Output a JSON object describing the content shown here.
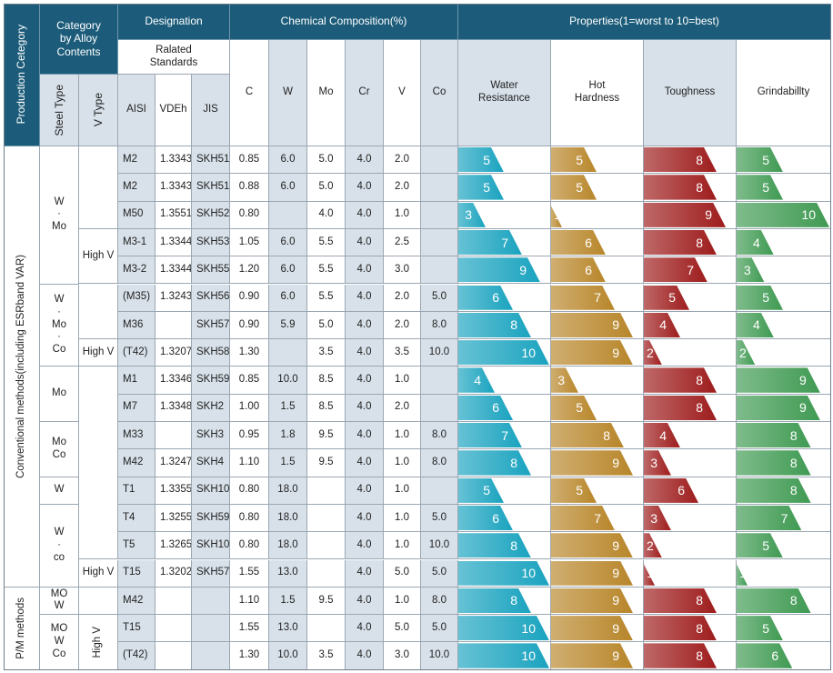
{
  "header": {
    "production_category": "Production Cetegory",
    "category_by_alloy": "Category\nby Alloy\nContents",
    "steel_type": "Steel Type",
    "v_type": "V Type",
    "designation": "Designation",
    "related_standards": "Ralated\nStandards",
    "aisi": "AISI",
    "vdeh": "VDEh",
    "jis": "JIS",
    "chemical_composition": "Chemical Composition(%)",
    "elements": [
      "C",
      "W",
      "Mo",
      "Cr",
      "V",
      "Co"
    ],
    "properties": "Properties(1=worst to 10=best)",
    "property_names": [
      "Water\nResistance",
      "Hot\nHardness",
      "Toughness",
      "Grindabillty"
    ]
  },
  "production_groups": [
    {
      "label": "Conventional methods(including ESRband VAR)"
    },
    {
      "label": "P/M methods"
    }
  ],
  "steel_type_groups": [
    {
      "label": "W\n·\nMo"
    },
    {
      "label": "W\n·\nMo\n·\nCo"
    },
    {
      "label": "Mo"
    },
    {
      "label": "Mo\nCo"
    },
    {
      "label": "W"
    },
    {
      "label": "W\n·\nco"
    },
    {
      "label": "MO\nW"
    },
    {
      "label": "MO\nW\nCo"
    }
  ],
  "v_type_groups": [
    {
      "label": ""
    },
    {
      "label": "High V"
    },
    {
      "label": ""
    },
    {
      "label": "High V"
    },
    {
      "label": ""
    },
    {
      "label": "High V"
    },
    {
      "label": ""
    },
    {
      "label": "High V"
    }
  ],
  "rows": [
    {
      "aisi": "M2",
      "vdeh": "1.3343",
      "jis": "SKH51",
      "c": "0.85",
      "w": "6.0",
      "mo": "5.0",
      "cr": "4.0",
      "v": "2.0",
      "co": "",
      "water": 5,
      "hot": 5,
      "tough": 8,
      "grind": 5
    },
    {
      "aisi": "M2",
      "vdeh": "1.3343",
      "jis": "SKH51",
      "c": "0.88",
      "w": "6.0",
      "mo": "5.0",
      "cr": "4.0",
      "v": "2.0",
      "co": "",
      "water": 5,
      "hot": 5,
      "tough": 8,
      "grind": 5
    },
    {
      "aisi": "M50",
      "vdeh": "1.3551",
      "jis": "SKH52",
      "c": "0.80",
      "w": "",
      "mo": "4.0",
      "cr": "4.0",
      "v": "1.0",
      "co": "",
      "water": 3,
      "hot": 1,
      "tough": 9,
      "grind": 10
    },
    {
      "aisi": "M3-1",
      "vdeh": "1.3344",
      "jis": "SKH53",
      "c": "1.05",
      "w": "6.0",
      "mo": "5.5",
      "cr": "4.0",
      "v": "2.5",
      "co": "",
      "water": 7,
      "hot": 6,
      "tough": 8,
      "grind": 4
    },
    {
      "aisi": "M3-2",
      "vdeh": "1.3344",
      "jis": "SKH55",
      "c": "1.20",
      "w": "6.0",
      "mo": "5.5",
      "cr": "4.0",
      "v": "3.0",
      "co": "",
      "water": 9,
      "hot": 6,
      "tough": 7,
      "grind": 3
    },
    {
      "aisi": "(M35)",
      "vdeh": "1.3243",
      "jis": "SKH56",
      "c": "0.90",
      "w": "6.0",
      "mo": "5.5",
      "cr": "4.0",
      "v": "2.0",
      "co": "5.0",
      "water": 6,
      "hot": 7,
      "tough": 5,
      "grind": 5
    },
    {
      "aisi": "M36",
      "vdeh": "",
      "jis": "SKH57",
      "c": "0.90",
      "w": "5.9",
      "mo": "5.0",
      "cr": "4.0",
      "v": "2.0",
      "co": "8.0",
      "water": 8,
      "hot": 9,
      "tough": 4,
      "grind": 4
    },
    {
      "aisi": "(T42)",
      "vdeh": "1.3207",
      "jis": "SKH58",
      "c": "1.30",
      "w": "",
      "mo": "3.5",
      "cr": "4.0",
      "v": "3.5",
      "co": "10.0",
      "water": 10,
      "hot": 9,
      "tough": 2,
      "grind": 2
    },
    {
      "aisi": "M1",
      "vdeh": "1.3346",
      "jis": "SKH59",
      "c": "0.85",
      "w": "10.0",
      "mo": "8.5",
      "cr": "4.0",
      "v": "1.0",
      "co": "",
      "water": 4,
      "hot": 3,
      "tough": 8,
      "grind": 9
    },
    {
      "aisi": "M7",
      "vdeh": "1.3348",
      "jis": "SKH2",
      "c": "1.00",
      "w": "1.5",
      "mo": "8.5",
      "cr": "4.0",
      "v": "2.0",
      "co": "",
      "water": 6,
      "hot": 5,
      "tough": 8,
      "grind": 9
    },
    {
      "aisi": "M33",
      "vdeh": "",
      "jis": "SKH3",
      "c": "0.95",
      "w": "1.8",
      "mo": "9.5",
      "cr": "4.0",
      "v": "1.0",
      "co": "8.0",
      "water": 7,
      "hot": 8,
      "tough": 4,
      "grind": 8
    },
    {
      "aisi": "M42",
      "vdeh": "1.3247",
      "jis": "SKH4",
      "c": "1.10",
      "w": "1.5",
      "mo": "9.5",
      "cr": "4.0",
      "v": "1.0",
      "co": "8.0",
      "water": 8,
      "hot": 9,
      "tough": 3,
      "grind": 8
    },
    {
      "aisi": "T1",
      "vdeh": "1.3355",
      "jis": "SKH10",
      "c": "0.80",
      "w": "18.0",
      "mo": "",
      "cr": "4.0",
      "v": "1.0",
      "co": "",
      "water": 5,
      "hot": 5,
      "tough": 6,
      "grind": 8
    },
    {
      "aisi": "T4",
      "vdeh": "1.3255",
      "jis": "SKH59",
      "c": "0.80",
      "w": "18.0",
      "mo": "",
      "cr": "4.0",
      "v": "1.0",
      "co": "5.0",
      "water": 6,
      "hot": 7,
      "tough": 3,
      "grind": 7
    },
    {
      "aisi": "T5",
      "vdeh": "1.3265",
      "jis": "SKH10",
      "c": "0.80",
      "w": "18.0",
      "mo": "",
      "cr": "4.0",
      "v": "1.0",
      "co": "10.0",
      "water": 8,
      "hot": 9,
      "tough": 2,
      "grind": 5
    },
    {
      "aisi": "T15",
      "vdeh": "1.3202",
      "jis": "SKH57",
      "c": "1.55",
      "w": "13.0",
      "mo": "",
      "cr": "4.0",
      "v": "5.0",
      "co": "5.0",
      "water": 10,
      "hot": 9,
      "tough": 1,
      "grind": 1
    },
    {
      "aisi": "M42",
      "vdeh": "",
      "jis": "",
      "c": "1.10",
      "w": "1.5",
      "mo": "9.5",
      "cr": "4.0",
      "v": "1.0",
      "co": "8.0",
      "water": 8,
      "hot": 9,
      "tough": 8,
      "grind": 8
    },
    {
      "aisi": "T15",
      "vdeh": "",
      "jis": "",
      "c": "1.55",
      "w": "13.0",
      "mo": "",
      "cr": "4.0",
      "v": "5.0",
      "co": "5.0",
      "water": 10,
      "hot": 9,
      "tough": 8,
      "grind": 5
    },
    {
      "aisi": "(T42)",
      "vdeh": "",
      "jis": "",
      "c": "1.30",
      "w": "10.0",
      "mo": "3.5",
      "cr": "4.0",
      "v": "3.0",
      "co": "10.0",
      "water": 10,
      "hot": 9,
      "tough": 8,
      "grind": 6
    }
  ],
  "colors": {
    "header_dark": "#1c5c7a",
    "header_light": "#d8e1ea",
    "water_resistance": "#1aa3bf",
    "hot_hardness": "#b8862a",
    "toughness": "#9e1c1c",
    "grindability": "#3f9a52"
  }
}
